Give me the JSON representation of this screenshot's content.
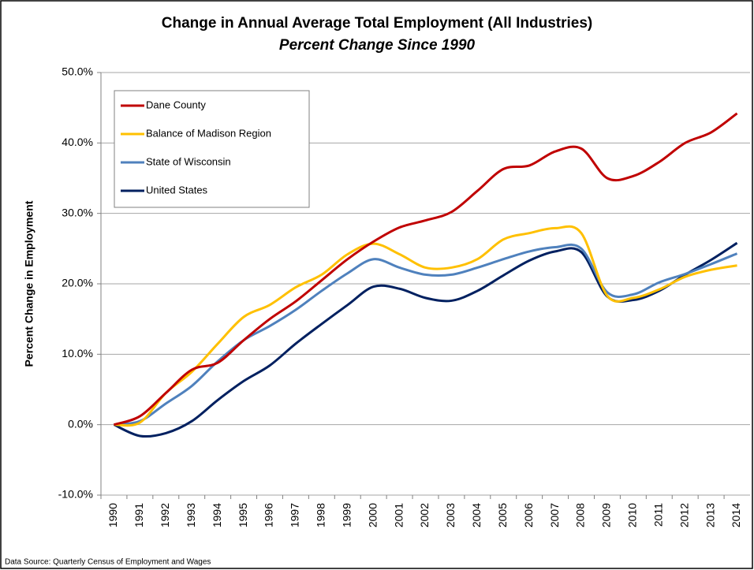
{
  "chart_data": {
    "type": "line",
    "title": "Change in Annual Average Total Employment (All Industries)",
    "subtitle": "Percent Change Since 1990",
    "y_label": "Percent Change in Employment",
    "source": "Data Source: Quarterly Census of Employment and Wages",
    "categories": [
      "1990",
      "1991",
      "1992",
      "1993",
      "1994",
      "1995",
      "1996",
      "1997",
      "1998",
      "1999",
      "2000",
      "2001",
      "2002",
      "2003",
      "2004",
      "2005",
      "2006",
      "2007",
      "2008",
      "2009",
      "2010",
      "2011",
      "2012",
      "2013",
      "2014"
    ],
    "series": [
      {
        "name": "Dane County",
        "color": "#c00000",
        "values": [
          0,
          1.2,
          4.5,
          7.8,
          8.8,
          12,
          15,
          17.5,
          20.5,
          23.5,
          26,
          28,
          29,
          30.2,
          33.2,
          36.3,
          36.8,
          38.8,
          39.2,
          35,
          35.3,
          37.3,
          40,
          41.5,
          44.2
        ]
      },
      {
        "name": "Balance of Madison Region",
        "color": "#ffc000",
        "values": [
          0,
          0.3,
          4.5,
          7.5,
          11.5,
          15.3,
          17,
          19.5,
          21.3,
          24.2,
          25.7,
          24.2,
          22.3,
          22.3,
          23.5,
          26.3,
          27.2,
          27.9,
          27.2,
          18.3,
          18,
          19.2,
          21,
          22,
          22.6
        ]
      },
      {
        "name": "State of Wisconsin",
        "color": "#4f81bd",
        "values": [
          0,
          0.5,
          3,
          5.5,
          9,
          12,
          14,
          16.3,
          19,
          21.5,
          23.5,
          22.3,
          21.3,
          21.3,
          22.3,
          23.5,
          24.6,
          25.2,
          25,
          18.8,
          18.5,
          20.2,
          21.4,
          22.8,
          24.3
        ]
      },
      {
        "name": "United States",
        "color": "#002060",
        "values": [
          0,
          -1.6,
          -1.2,
          0.5,
          3.5,
          6.2,
          8.4,
          11.5,
          14.3,
          17,
          19.6,
          19.3,
          18,
          17.6,
          19,
          21.2,
          23.3,
          24.6,
          24.5,
          18.2,
          17.7,
          19,
          21.3,
          23.4,
          25.8
        ]
      }
    ],
    "ylim": [
      -10,
      50
    ],
    "yticks": [
      {
        "value": -10,
        "label": "-10.0%"
      },
      {
        "value": 0,
        "label": "0.0%"
      },
      {
        "value": 10,
        "label": "10.0%"
      },
      {
        "value": 20,
        "label": "20.0%"
      },
      {
        "value": 30,
        "label": "30.0%"
      },
      {
        "value": 40,
        "label": "40.0%"
      },
      {
        "value": 50,
        "label": "50.0%"
      }
    ],
    "grid": true,
    "legend": "upper-left"
  }
}
